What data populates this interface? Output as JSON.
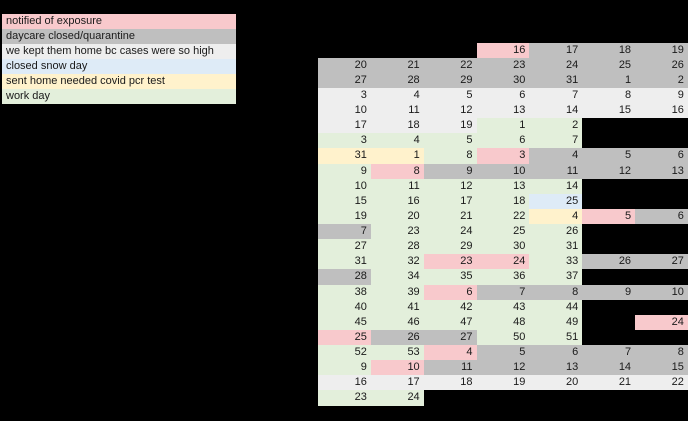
{
  "palette": {
    "P": "#f8c9cc",
    "G": "#bfbfbf",
    "W": "#eeeeee",
    "B": "#deebf7",
    "Y": "#fff2cc",
    "N": "#e3efdb",
    "K": ""
  },
  "legend": {
    "items": [
      {
        "label": "notified of exposure",
        "color": "P"
      },
      {
        "label": "daycare closed/quarantine",
        "color": "G"
      },
      {
        "label": "we kept them home bc cases were so high",
        "color": "W"
      },
      {
        "label": "closed snow day",
        "color": "B"
      },
      {
        "label": "sent home needed covid pcr test",
        "color": "Y"
      },
      {
        "label": "work day",
        "color": "N"
      }
    ]
  },
  "grid": {
    "rows": [
      [
        [
          "",
          "K"
        ],
        [
          "",
          "K"
        ],
        [
          "",
          "K"
        ],
        [
          "16",
          "P"
        ],
        [
          "17",
          "G"
        ],
        [
          "18",
          "G"
        ],
        [
          "19",
          "G"
        ]
      ],
      [
        [
          "20",
          "G"
        ],
        [
          "21",
          "G"
        ],
        [
          "22",
          "G"
        ],
        [
          "23",
          "G"
        ],
        [
          "24",
          "G"
        ],
        [
          "25",
          "G"
        ],
        [
          "26",
          "G"
        ]
      ],
      [
        [
          "27",
          "G"
        ],
        [
          "28",
          "G"
        ],
        [
          "29",
          "G"
        ],
        [
          "30",
          "G"
        ],
        [
          "31",
          "G"
        ],
        [
          "1",
          "G"
        ],
        [
          "2",
          "G"
        ]
      ],
      [
        [
          "3",
          "W"
        ],
        [
          "4",
          "W"
        ],
        [
          "5",
          "W"
        ],
        [
          "6",
          "W"
        ],
        [
          "7",
          "W"
        ],
        [
          "8",
          "W"
        ],
        [
          "9",
          "W"
        ]
      ],
      [
        [
          "10",
          "W"
        ],
        [
          "11",
          "W"
        ],
        [
          "12",
          "W"
        ],
        [
          "13",
          "W"
        ],
        [
          "14",
          "W"
        ],
        [
          "15",
          "W"
        ],
        [
          "16",
          "W"
        ]
      ],
      [
        [
          "17",
          "W"
        ],
        [
          "18",
          "W"
        ],
        [
          "19",
          "W"
        ],
        [
          "1",
          "N"
        ],
        [
          "2",
          "N"
        ],
        [
          "",
          "K"
        ],
        [
          "",
          "K"
        ]
      ],
      [
        [
          "3",
          "N"
        ],
        [
          "4",
          "N"
        ],
        [
          "5",
          "N"
        ],
        [
          "6",
          "N"
        ],
        [
          "7",
          "N"
        ],
        [
          "",
          "K"
        ],
        [
          "",
          "K"
        ]
      ],
      [
        [
          "31",
          "Y"
        ],
        [
          "1",
          "Y"
        ],
        [
          "8",
          "N"
        ],
        [
          "3",
          "P"
        ],
        [
          "4",
          "G"
        ],
        [
          "5",
          "G"
        ],
        [
          "6",
          "G"
        ]
      ],
      [
        [
          "9",
          "N"
        ],
        [
          "8",
          "P"
        ],
        [
          "9",
          "G"
        ],
        [
          "10",
          "G"
        ],
        [
          "11",
          "G"
        ],
        [
          "12",
          "G"
        ],
        [
          "13",
          "G"
        ]
      ],
      [
        [
          "10",
          "N"
        ],
        [
          "11",
          "N"
        ],
        [
          "12",
          "N"
        ],
        [
          "13",
          "N"
        ],
        [
          "14",
          "N"
        ],
        [
          "",
          "K"
        ],
        [
          "",
          "K"
        ]
      ],
      [
        [
          "15",
          "N"
        ],
        [
          "16",
          "N"
        ],
        [
          "17",
          "N"
        ],
        [
          "18",
          "N"
        ],
        [
          "25",
          "B"
        ],
        [
          "",
          "K"
        ],
        [
          "",
          "K"
        ]
      ],
      [
        [
          "19",
          "N"
        ],
        [
          "20",
          "N"
        ],
        [
          "21",
          "N"
        ],
        [
          "22",
          "N"
        ],
        [
          "4",
          "Y"
        ],
        [
          "5",
          "P"
        ],
        [
          "6",
          "G"
        ]
      ],
      [
        [
          "7",
          "G"
        ],
        [
          "23",
          "N"
        ],
        [
          "24",
          "N"
        ],
        [
          "25",
          "N"
        ],
        [
          "26",
          "N"
        ],
        [
          "",
          "K"
        ],
        [
          "",
          "K"
        ]
      ],
      [
        [
          "27",
          "N"
        ],
        [
          "28",
          "N"
        ],
        [
          "29",
          "N"
        ],
        [
          "30",
          "N"
        ],
        [
          "31",
          "N"
        ],
        [
          "",
          "K"
        ],
        [
          "",
          "K"
        ]
      ],
      [
        [
          "31",
          "N"
        ],
        [
          "32",
          "N"
        ],
        [
          "23",
          "P"
        ],
        [
          "24",
          "P"
        ],
        [
          "33",
          "N"
        ],
        [
          "26",
          "G"
        ],
        [
          "27",
          "G"
        ]
      ],
      [
        [
          "28",
          "G"
        ],
        [
          "34",
          "N"
        ],
        [
          "35",
          "N"
        ],
        [
          "36",
          "N"
        ],
        [
          "37",
          "N"
        ],
        [
          "",
          "K"
        ],
        [
          "",
          "K"
        ]
      ],
      [
        [
          "38",
          "N"
        ],
        [
          "39",
          "N"
        ],
        [
          "6",
          "P"
        ],
        [
          "7",
          "G"
        ],
        [
          "8",
          "G"
        ],
        [
          "9",
          "G"
        ],
        [
          "10",
          "G"
        ]
      ],
      [
        [
          "40",
          "N"
        ],
        [
          "41",
          "N"
        ],
        [
          "42",
          "N"
        ],
        [
          "43",
          "N"
        ],
        [
          "44",
          "N"
        ],
        [
          "",
          "K"
        ],
        [
          "",
          "K"
        ]
      ],
      [
        [
          "45",
          "N"
        ],
        [
          "46",
          "N"
        ],
        [
          "47",
          "N"
        ],
        [
          "48",
          "N"
        ],
        [
          "49",
          "N"
        ],
        [
          "",
          "K"
        ],
        [
          "24",
          "P"
        ]
      ],
      [
        [
          "25",
          "P"
        ],
        [
          "26",
          "G"
        ],
        [
          "27",
          "G"
        ],
        [
          "50",
          "N"
        ],
        [
          "51",
          "N"
        ],
        [
          "",
          "K"
        ],
        [
          "",
          "K"
        ]
      ],
      [
        [
          "52",
          "N"
        ],
        [
          "53",
          "N"
        ],
        [
          "4",
          "P"
        ],
        [
          "5",
          "G"
        ],
        [
          "6",
          "G"
        ],
        [
          "7",
          "G"
        ],
        [
          "8",
          "G"
        ]
      ],
      [
        [
          "9",
          "N"
        ],
        [
          "10",
          "P"
        ],
        [
          "11",
          "G"
        ],
        [
          "12",
          "G"
        ],
        [
          "13",
          "G"
        ],
        [
          "14",
          "G"
        ],
        [
          "15",
          "G"
        ]
      ],
      [
        [
          "16",
          "W"
        ],
        [
          "17",
          "W"
        ],
        [
          "18",
          "W"
        ],
        [
          "19",
          "W"
        ],
        [
          "20",
          "W"
        ],
        [
          "21",
          "W"
        ],
        [
          "22",
          "W"
        ]
      ],
      [
        [
          "23",
          "N"
        ],
        [
          "24",
          "N"
        ],
        [
          "",
          "K"
        ],
        [
          "",
          "K"
        ],
        [
          "",
          "K"
        ],
        [
          "",
          "K"
        ],
        [
          "",
          "K"
        ]
      ]
    ]
  }
}
